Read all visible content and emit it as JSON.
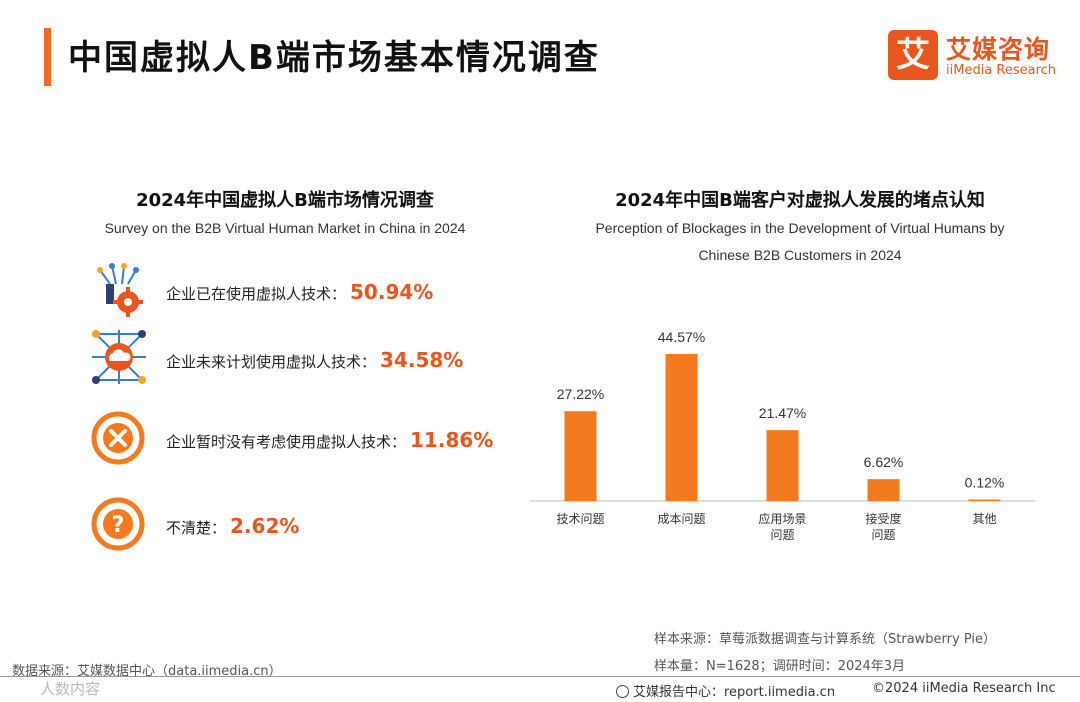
{
  "page_title": "中国虚拟人B端市场基本情况调查",
  "brand": {
    "cn": "艾媒咨询",
    "en": "iiMedia Research",
    "mark": "艾"
  },
  "left": {
    "title": "2024年中国虚拟人B端市场情况调查",
    "subtitle": "Survey on the B2B Virtual Human Market in China in 2024",
    "items": [
      {
        "label": "企业已在使用虚拟人技术：",
        "value": "50.94%",
        "icon": "tech-network-gear-icon"
      },
      {
        "label": "企业未来计划使用虚拟人技术：",
        "value": "34.58%",
        "icon": "cloud-network-icon"
      },
      {
        "label": "企业暂时没有考虑使用虚拟人技术：",
        "value": "11.86%",
        "icon": "cross-circle-icon"
      },
      {
        "label": "不清楚：",
        "value": "2.62%",
        "icon": "question-circle-icon"
      }
    ]
  },
  "chart_data": {
    "type": "bar",
    "title": "2024年中国B端客户对虚拟人发展的堵点认知",
    "subtitle": "Perception of Blockages in the Development of Virtual Humans by Chinese B2B Customers in 2024",
    "subtitle_lines": [
      "Perception of Blockages in the Development of Virtual Humans by",
      "Chinese B2B Customers in 2024"
    ],
    "categories": [
      [
        "技术问题"
      ],
      [
        "成本问题"
      ],
      [
        "应用场景",
        "问题"
      ],
      [
        "接受度",
        "问题"
      ],
      [
        "其他"
      ]
    ],
    "values": [
      27.22,
      44.57,
      21.47,
      6.62,
      0.12
    ],
    "labels": [
      "27.22%",
      "44.57%",
      "21.47%",
      "6.62%",
      "0.12%"
    ],
    "unit": "%",
    "ylim": [
      0,
      50
    ],
    "grid": false,
    "bar_color": "#f47a20"
  },
  "footer": {
    "sample_source": "样本来源：草莓派数据调查与计算系统（Strawberry Pie）",
    "sample_size": "样本量：N=1628；调研时间：2024年3月",
    "data_source": "数据来源：艾媒数据中心（data.iimedia.cn）",
    "report_center": "艾媒报告中心：report.iimedia.cn",
    "copyright": "©2024  iiMedia Research  Inc",
    "watermark": "人数内容"
  }
}
